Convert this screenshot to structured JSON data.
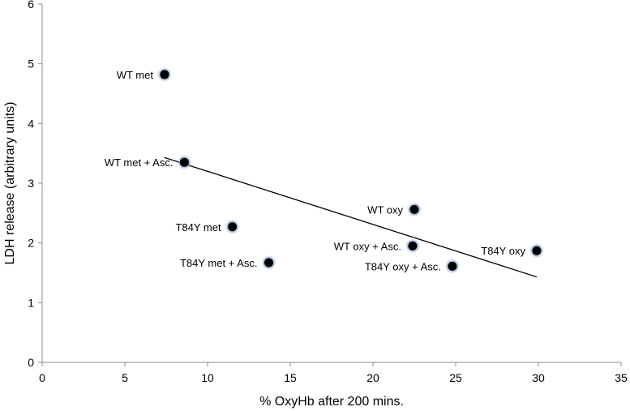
{
  "chart_data": {
    "type": "scatter",
    "title": "",
    "xlabel": "% OxyHb after 200 mins.",
    "ylabel": "LDH release (arbitrary units)",
    "xlim": [
      0,
      35
    ],
    "ylim": [
      0,
      6
    ],
    "xticks": [
      0,
      5,
      10,
      15,
      20,
      25,
      30,
      35
    ],
    "yticks": [
      0,
      1,
      2,
      3,
      4,
      5,
      6
    ],
    "grid": false,
    "points": [
      {
        "label": "WT met",
        "x": 7.4,
        "y": 4.82,
        "label_side": "left"
      },
      {
        "label": "WT met + Asc.",
        "x": 8.6,
        "y": 3.35,
        "label_side": "left"
      },
      {
        "label": "T84Y met",
        "x": 11.5,
        "y": 2.27,
        "label_side": "left"
      },
      {
        "label": "T84Y met + Asc.",
        "x": 13.7,
        "y": 1.67,
        "label_side": "left"
      },
      {
        "label": "WT oxy",
        "x": 22.5,
        "y": 2.56,
        "label_side": "left"
      },
      {
        "label": "WT oxy + Asc.",
        "x": 22.4,
        "y": 1.95,
        "label_side": "left"
      },
      {
        "label": "T84Y oxy + Asc.",
        "x": 24.8,
        "y": 1.61,
        "label_side": "left-below"
      },
      {
        "label": "T84Y oxy",
        "x": 29.9,
        "y": 1.87,
        "label_side": "left"
      }
    ],
    "trendline": {
      "x": [
        7.4,
        29.9
      ],
      "y": [
        3.43,
        1.43
      ]
    },
    "colors": {
      "marker_fill": "#000000",
      "marker_halo": "#7f9fc8",
      "axis": "#8c8c8c",
      "trendline": "#000000"
    }
  }
}
